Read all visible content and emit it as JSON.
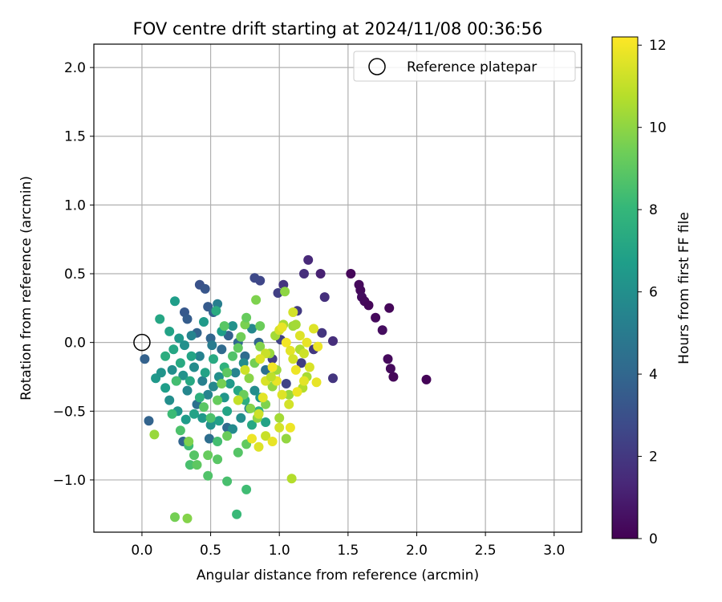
{
  "chart_data": {
    "type": "scatter",
    "title": "FOV centre drift starting at 2024/11/08 00:36:56",
    "xlabel": "Angular distance from reference (arcmin)",
    "ylabel": "Rotation from reference (arcmin)",
    "xlim": [
      -0.35,
      3.2
    ],
    "ylim": [
      -1.38,
      2.17
    ],
    "xticks": [
      0.0,
      0.5,
      1.0,
      1.5,
      2.0,
      2.5,
      3.0
    ],
    "xtick_labels": [
      "0.0",
      "0.5",
      "1.0",
      "1.5",
      "2.0",
      "2.5",
      "3.0"
    ],
    "yticks": [
      -1.0,
      -0.5,
      0.0,
      0.5,
      1.0,
      1.5,
      2.0
    ],
    "ytick_labels": [
      "−1.0",
      "−0.5",
      "0.0",
      "0.5",
      "1.0",
      "1.5",
      "2.0"
    ],
    "grid": true,
    "legend": {
      "placement": "top-right",
      "label": "Reference platepar"
    },
    "reference_point": {
      "x": 0.0,
      "y": 0.0
    },
    "colorbar": {
      "label": "Hours from first FF file",
      "range": [
        0,
        12.2
      ],
      "ticks": [
        0,
        2,
        4,
        6,
        8,
        10,
        12
      ],
      "tick_labels": [
        "0",
        "2",
        "4",
        "6",
        "8",
        "10",
        "12"
      ],
      "colormap": "viridis",
      "stops": [
        "#440154",
        "#482878",
        "#3e4989",
        "#31688e",
        "#26828e",
        "#1f9e89",
        "#35b779",
        "#6ece58",
        "#b5de2b",
        "#fde725"
      ]
    },
    "points": [
      [
        1.52,
        0.5,
        0.2
      ],
      [
        1.58,
        0.42,
        0.3
      ],
      [
        1.59,
        0.38,
        0.3
      ],
      [
        1.6,
        0.33,
        0.4
      ],
      [
        1.62,
        0.3,
        0.3
      ],
      [
        1.65,
        0.27,
        0.2
      ],
      [
        1.7,
        0.18,
        0.3
      ],
      [
        1.75,
        0.09,
        0.4
      ],
      [
        1.8,
        0.25,
        0.2
      ],
      [
        1.79,
        -0.12,
        0.3
      ],
      [
        1.81,
        -0.19,
        0.3
      ],
      [
        1.83,
        -0.25,
        0.2
      ],
      [
        2.07,
        -0.27,
        0.1
      ],
      [
        1.21,
        0.6,
        1.4
      ],
      [
        1.18,
        0.5,
        1.6
      ],
      [
        1.3,
        0.5,
        1.1
      ],
      [
        1.33,
        0.33,
        1.7
      ],
      [
        1.31,
        0.07,
        1.9
      ],
      [
        1.39,
        0.01,
        1.6
      ],
      [
        1.39,
        -0.26,
        1.9
      ],
      [
        1.13,
        0.23,
        2.1
      ],
      [
        1.03,
        0.42,
        1.9
      ],
      [
        0.99,
        0.36,
        2.3
      ],
      [
        0.86,
        0.45,
        2.6
      ],
      [
        0.82,
        0.47,
        2.7
      ],
      [
        1.01,
        0.02,
        2.4
      ],
      [
        0.95,
        -0.12,
        2.2
      ],
      [
        1.25,
        -0.05,
        2.0
      ],
      [
        1.16,
        -0.15,
        2.2
      ],
      [
        1.05,
        -0.3,
        2.5
      ],
      [
        0.42,
        0.42,
        3.1
      ],
      [
        0.46,
        0.39,
        3.3
      ],
      [
        0.31,
        0.22,
        3.4
      ],
      [
        0.33,
        0.17,
        3.6
      ],
      [
        0.48,
        0.26,
        3.5
      ],
      [
        0.52,
        0.22,
        3.8
      ],
      [
        0.4,
        0.07,
        3.9
      ],
      [
        0.5,
        0.03,
        4.0
      ],
      [
        0.63,
        0.05,
        3.8
      ],
      [
        0.58,
        -0.05,
        4.2
      ],
      [
        0.7,
        0.0,
        4.1
      ],
      [
        0.75,
        -0.1,
        4.3
      ],
      [
        0.85,
        0.0,
        3.9
      ],
      [
        0.9,
        -0.2,
        4.5
      ],
      [
        0.02,
        -0.12,
        3.8
      ],
      [
        0.05,
        -0.57,
        3.9
      ],
      [
        0.3,
        -0.72,
        4.0
      ],
      [
        0.49,
        -0.7,
        4.4
      ],
      [
        0.62,
        -0.62,
        4.2
      ],
      [
        0.4,
        -0.45,
        4.5
      ],
      [
        0.24,
        0.3,
        6.8
      ],
      [
        0.13,
        0.17,
        7.2
      ],
      [
        0.2,
        0.08,
        7.0
      ],
      [
        0.27,
        0.03,
        6.5
      ],
      [
        0.31,
        -0.02,
        6.1
      ],
      [
        0.36,
        0.05,
        5.5
      ],
      [
        0.42,
        -0.1,
        5.4
      ],
      [
        0.51,
        -0.02,
        5.1
      ],
      [
        0.55,
        0.28,
        5.2
      ],
      [
        0.54,
        0.23,
        7.5
      ],
      [
        0.1,
        -0.26,
        6.5
      ],
      [
        0.14,
        -0.22,
        6.3
      ],
      [
        0.17,
        -0.33,
        6.8
      ],
      [
        0.22,
        -0.2,
        6.0
      ],
      [
        0.25,
        -0.28,
        5.8
      ],
      [
        0.3,
        -0.24,
        6.2
      ],
      [
        0.33,
        -0.35,
        5.6
      ],
      [
        0.38,
        -0.18,
        5.9
      ],
      [
        0.44,
        -0.28,
        5.3
      ],
      [
        0.48,
        -0.38,
        5.5
      ],
      [
        0.52,
        -0.32,
        5.7
      ],
      [
        0.56,
        -0.25,
        6.1
      ],
      [
        0.6,
        -0.4,
        6.4
      ],
      [
        0.64,
        -0.3,
        6.6
      ],
      [
        0.2,
        -0.42,
        6.0
      ],
      [
        0.26,
        -0.5,
        6.4
      ],
      [
        0.32,
        -0.56,
        6.7
      ],
      [
        0.38,
        -0.52,
        7.0
      ],
      [
        0.44,
        -0.55,
        6.5
      ],
      [
        0.5,
        -0.6,
        6.2
      ],
      [
        0.56,
        -0.57,
        6.9
      ],
      [
        0.62,
        -0.5,
        7.1
      ],
      [
        0.66,
        -0.63,
        5.8
      ],
      [
        0.72,
        -0.55,
        6.0
      ],
      [
        0.78,
        -0.48,
        5.6
      ],
      [
        0.82,
        -0.35,
        5.9
      ],
      [
        0.86,
        -0.4,
        6.4
      ],
      [
        0.68,
        -0.22,
        5.5
      ],
      [
        0.74,
        -0.15,
        5.9
      ],
      [
        0.8,
        0.1,
        5.7
      ],
      [
        0.66,
        0.12,
        6.2
      ],
      [
        0.58,
        0.08,
        6.8
      ],
      [
        0.45,
        0.15,
        6.6
      ],
      [
        0.36,
        -0.1,
        7.1
      ],
      [
        0.28,
        -0.15,
        7.4
      ],
      [
        0.23,
        -0.05,
        7.2
      ],
      [
        0.17,
        -0.1,
        7.6
      ],
      [
        0.35,
        -0.28,
        7.3
      ],
      [
        0.42,
        -0.4,
        7.7
      ],
      [
        0.46,
        -0.22,
        7.0
      ],
      [
        0.52,
        -0.12,
        7.4
      ],
      [
        0.6,
        -0.18,
        7.8
      ],
      [
        0.7,
        -0.35,
        7.2
      ],
      [
        0.75,
        -0.42,
        7.6
      ],
      [
        0.8,
        -0.6,
        7.3
      ],
      [
        0.85,
        -0.5,
        7.8
      ],
      [
        0.9,
        -0.58,
        7.0
      ],
      [
        0.25,
        -0.28,
        8.5
      ],
      [
        0.22,
        -0.52,
        8.3
      ],
      [
        0.28,
        -0.64,
        8.7
      ],
      [
        0.34,
        -0.75,
        8.4
      ],
      [
        0.38,
        -0.82,
        8.9
      ],
      [
        0.35,
        -0.89,
        8.6
      ],
      [
        0.4,
        -0.89,
        9.1
      ],
      [
        0.48,
        -0.82,
        9.3
      ],
      [
        0.48,
        -0.97,
        8.8
      ],
      [
        0.55,
        -0.85,
        9.0
      ],
      [
        0.62,
        -1.01,
        8.6
      ],
      [
        0.69,
        -1.25,
        8.2
      ],
      [
        0.76,
        -1.07,
        8.4
      ],
      [
        0.7,
        -0.8,
        8.9
      ],
      [
        0.76,
        -0.74,
        9.2
      ],
      [
        0.62,
        -0.68,
        9.4
      ],
      [
        0.55,
        -0.72,
        8.5
      ],
      [
        0.5,
        -0.55,
        8.7
      ],
      [
        0.45,
        -0.47,
        9.0
      ],
      [
        0.55,
        -0.42,
        9.3
      ],
      [
        0.58,
        -0.3,
        9.6
      ],
      [
        0.62,
        -0.22,
        9.1
      ],
      [
        0.66,
        -0.1,
        8.8
      ],
      [
        0.7,
        -0.04,
        9.2
      ],
      [
        0.72,
        0.04,
        9.5
      ],
      [
        0.75,
        0.13,
        9.7
      ],
      [
        0.76,
        0.18,
        9.3
      ],
      [
        0.83,
        0.31,
        9.8
      ],
      [
        0.86,
        0.12,
        9.4
      ],
      [
        0.86,
        -0.03,
        9.9
      ],
      [
        0.82,
        -0.15,
        9.6
      ],
      [
        0.78,
        -0.26,
        10.0
      ],
      [
        0.74,
        -0.38,
        9.4
      ],
      [
        0.79,
        -0.48,
        9.9
      ],
      [
        0.84,
        -0.55,
        10.1
      ],
      [
        0.9,
        -0.45,
        9.8
      ],
      [
        0.95,
        -0.32,
        10.2
      ],
      [
        0.98,
        -0.2,
        10.4
      ],
      [
        0.93,
        -0.08,
        10.3
      ],
      [
        0.97,
        0.05,
        10.5
      ],
      [
        1.03,
        0.13,
        10.6
      ],
      [
        1.1,
        0.12,
        10.4
      ],
      [
        1.15,
        -0.05,
        10.7
      ],
      [
        1.2,
        -0.25,
        10.6
      ],
      [
        1.17,
        -0.33,
        10.8
      ],
      [
        1.07,
        -0.38,
        10.3
      ],
      [
        1.0,
        -0.55,
        10.5
      ],
      [
        1.05,
        -0.7,
        10.2
      ],
      [
        1.09,
        -0.99,
        10.8
      ],
      [
        1.04,
        0.37,
        10.1
      ],
      [
        1.12,
        0.13,
        10.5
      ],
      [
        0.34,
        -0.72,
        9.8
      ],
      [
        0.24,
        -1.27,
        9.6
      ],
      [
        0.33,
        -1.28,
        9.9
      ],
      [
        0.09,
        -0.67,
        10.3
      ],
      [
        0.6,
        0.12,
        9.0
      ],
      [
        1.0,
        0.09,
        11.5
      ],
      [
        1.02,
        0.11,
        11.8
      ],
      [
        1.05,
        0.0,
        12.0
      ],
      [
        1.08,
        -0.06,
        11.7
      ],
      [
        1.1,
        -0.12,
        11.4
      ],
      [
        1.12,
        -0.2,
        11.9
      ],
      [
        1.15,
        0.05,
        11.6
      ],
      [
        1.18,
        -0.08,
        11.3
      ],
      [
        1.2,
        0.0,
        11.8
      ],
      [
        1.22,
        -0.18,
        11.5
      ],
      [
        1.18,
        -0.28,
        11.7
      ],
      [
        1.13,
        -0.36,
        11.9
      ],
      [
        1.07,
        -0.45,
        11.4
      ],
      [
        1.02,
        -0.38,
        11.6
      ],
      [
        0.98,
        -0.28,
        11.8
      ],
      [
        0.95,
        -0.18,
        12.0
      ],
      [
        0.9,
        -0.28,
        11.5
      ],
      [
        0.88,
        -0.4,
        11.7
      ],
      [
        0.85,
        -0.52,
        11.3
      ],
      [
        0.8,
        -0.7,
        11.9
      ],
      [
        0.85,
        -0.76,
        11.6
      ],
      [
        0.9,
        -0.68,
        11.2
      ],
      [
        0.95,
        -0.72,
        11.8
      ],
      [
        1.0,
        -0.62,
        11.4
      ],
      [
        1.08,
        -0.62,
        11.9
      ],
      [
        0.94,
        -0.25,
        11.0
      ],
      [
        0.9,
        -0.08,
        11.2
      ],
      [
        0.86,
        -0.12,
        11.6
      ],
      [
        0.7,
        -0.42,
        11.1
      ],
      [
        0.75,
        -0.2,
        11.3
      ],
      [
        1.25,
        0.1,
        11.6
      ],
      [
        1.28,
        -0.03,
        11.9
      ],
      [
        1.27,
        -0.29,
        11.8
      ],
      [
        1.1,
        0.22,
        11.4
      ]
    ]
  }
}
